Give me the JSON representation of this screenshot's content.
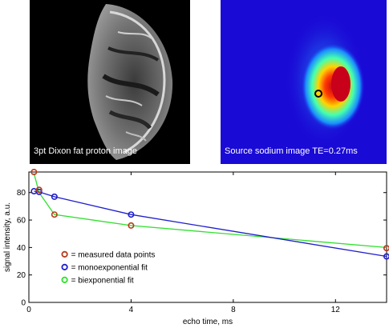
{
  "images": {
    "left_caption": "3pt Dixon fat proton image",
    "right_caption": "Source sodium image TE=0.27ms"
  },
  "chart_data": {
    "type": "line",
    "xlabel": "echo time, ms",
    "ylabel": "signal intensity, a.u.",
    "xlim": [
      0,
      14
    ],
    "ylim": [
      0,
      95
    ],
    "xticks": [
      0,
      4,
      8,
      12
    ],
    "yticks": [
      0,
      20,
      40,
      60,
      80
    ],
    "grid": false,
    "legend_position": "center-left",
    "series": [
      {
        "name": "= measured data points",
        "style": "markers",
        "color": "#b8391c",
        "x": [
          0.2,
          0.4,
          1.0,
          4.0,
          14.0
        ],
        "y": [
          95,
          82,
          64,
          56,
          39.5
        ]
      },
      {
        "name": "= monoexponential fit",
        "style": "line+markers",
        "color": "#1f1fcc",
        "x": [
          0.2,
          0.4,
          1.0,
          4.0,
          14.0
        ],
        "y": [
          81,
          80.5,
          77,
          64,
          33.5
        ]
      },
      {
        "name": "= biexponential fit",
        "style": "line",
        "color": "#2fe02f",
        "x": [
          0.2,
          0.4,
          1.0,
          4.0,
          14.0
        ],
        "y": [
          94,
          80,
          64,
          56,
          40
        ]
      }
    ]
  }
}
